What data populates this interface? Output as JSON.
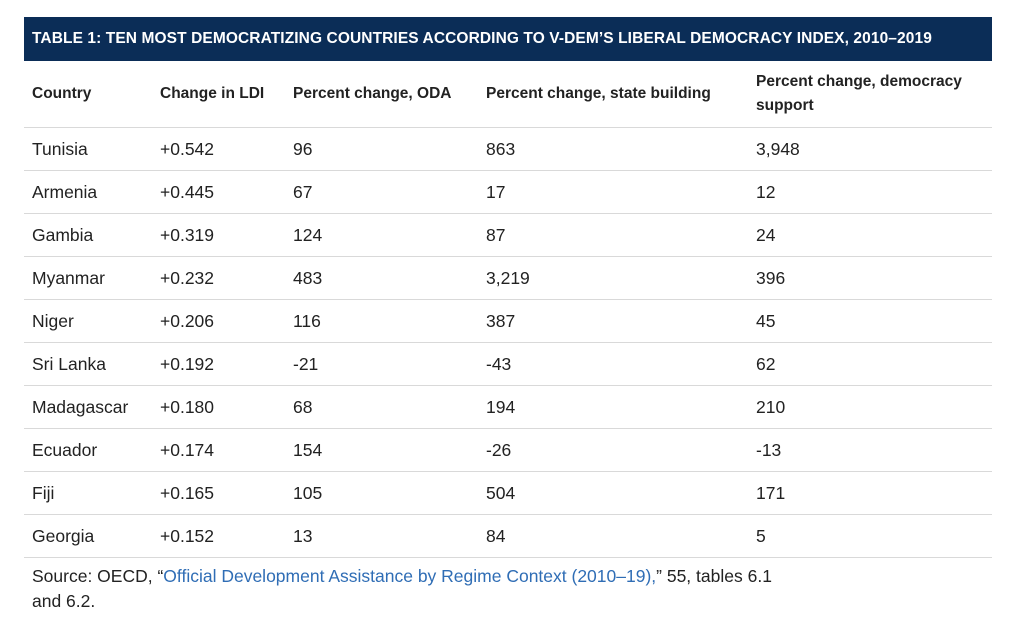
{
  "table": {
    "title": "TABLE 1: TEN MOST DEMOCRATIZING COUNTRIES ACCORDING TO V-DEM’S LIBERAL DEMOCRACY INDEX, 2010–2019",
    "headers": [
      "Country",
      "Change in LDI",
      "Percent change, ODA",
      "Percent change, state building",
      "Percent change, democracy support"
    ],
    "rows": [
      [
        "Tunisia",
        "+0.542",
        "96",
        "863",
        "3,948"
      ],
      [
        "Armenia",
        "+0.445",
        "67",
        "17",
        "12"
      ],
      [
        "Gambia",
        "+0.319",
        "124",
        "87",
        "24"
      ],
      [
        "Myanmar",
        "+0.232",
        "483",
        "3,219",
        "396"
      ],
      [
        "Niger",
        "+0.206",
        "116",
        "387",
        "45"
      ],
      [
        "Sri Lanka",
        "+0.192",
        "-21",
        "-43",
        "62"
      ],
      [
        "Madagascar",
        "+0.180",
        "68",
        "194",
        "210"
      ],
      [
        "Ecuador",
        "+0.174",
        "154",
        "-26",
        "-13"
      ],
      [
        "Fiji",
        "+0.165",
        "105",
        "504",
        "171"
      ],
      [
        "Georgia",
        "+0.152",
        "13",
        "84",
        "5"
      ]
    ]
  },
  "source": {
    "prefix": "Source: OECD, “",
    "link_text": "Official Development Assistance by Regime Context (2010–19),",
    "suffix": "” 55, tables 6.1 and 6.2."
  },
  "colors": {
    "title_bar_bg": "#0b2d57",
    "title_text": "#ffffff",
    "link": "#2f6db5",
    "row_divider": "#d9d9d9"
  }
}
